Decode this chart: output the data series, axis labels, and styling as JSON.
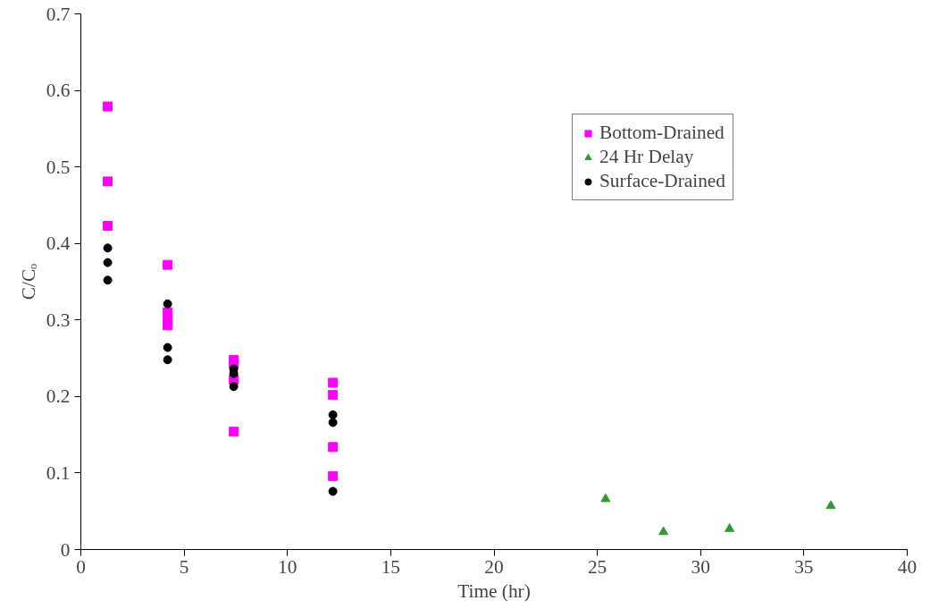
{
  "chart_data": {
    "type": "scatter",
    "xlabel": "Time (hr)",
    "ylabel": "C/Cₒ",
    "xlim": [
      0,
      40
    ],
    "xticks": [
      0,
      5,
      10,
      15,
      20,
      25,
      30,
      35,
      40
    ],
    "ylim": [
      0,
      0.7
    ],
    "yticks": [
      0,
      0.1,
      0.2,
      0.3,
      0.4,
      0.5,
      0.6,
      0.7
    ],
    "grid": false,
    "legend": "top right",
    "series": [
      {
        "name": "Bottom-Drained",
        "color": "#ff00ff",
        "marker": "square",
        "x": [
          1.3,
          1.3,
          1.3,
          4.2,
          4.2,
          4.2,
          4.2,
          7.4,
          7.4,
          7.4,
          7.4,
          12.2,
          12.2,
          12.2,
          12.2
        ],
        "values": [
          0.579,
          0.481,
          0.423,
          0.372,
          0.31,
          0.3,
          0.293,
          0.248,
          0.243,
          0.222,
          0.154,
          0.218,
          0.202,
          0.134,
          0.096
        ]
      },
      {
        "name": "24 Hr Delay",
        "color": "#339933",
        "marker": "triangle",
        "x": [
          25.4,
          28.2,
          31.4,
          36.3
        ],
        "values": [
          0.066,
          0.023,
          0.027,
          0.057
        ]
      },
      {
        "name": "Surface-Drained",
        "color": "#000000",
        "marker": "circle",
        "x": [
          1.3,
          1.3,
          1.3,
          4.2,
          4.2,
          4.2,
          7.4,
          7.4,
          7.4,
          12.2,
          12.2,
          12.2
        ],
        "values": [
          0.394,
          0.375,
          0.352,
          0.321,
          0.264,
          0.248,
          0.236,
          0.23,
          0.213,
          0.176,
          0.166,
          0.076
        ]
      }
    ]
  }
}
